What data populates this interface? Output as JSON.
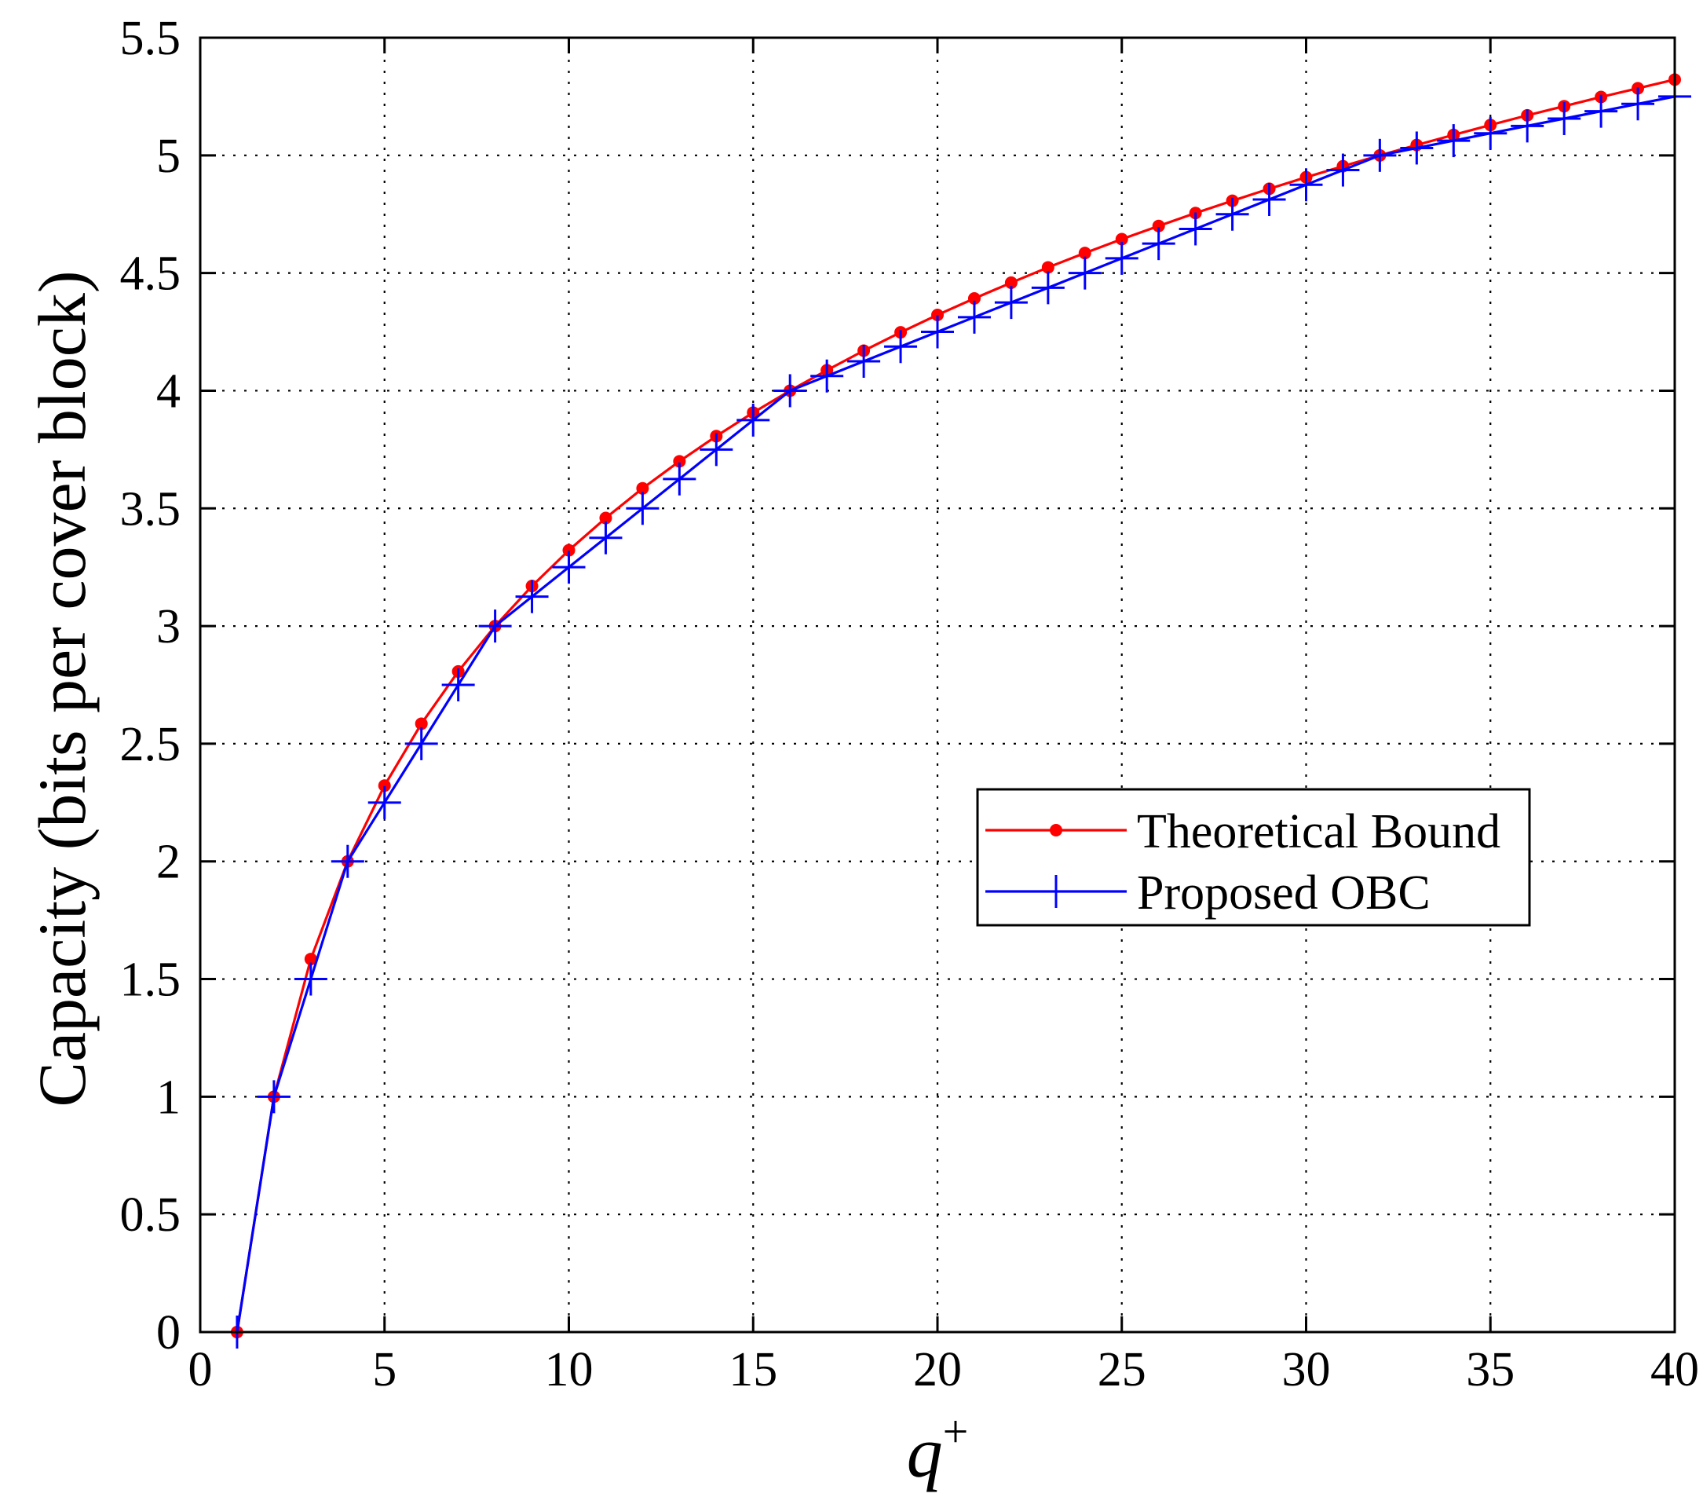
{
  "chart_data": {
    "type": "line",
    "xlabel_base": "q",
    "xlabel_sup": "+",
    "ylabel": "Capacity (bits per cover block)",
    "xlim": [
      0,
      40
    ],
    "ylim": [
      0,
      5.5
    ],
    "xticks": [
      0,
      5,
      10,
      15,
      20,
      25,
      30,
      35,
      40
    ],
    "yticks": [
      0,
      0.5,
      1,
      1.5,
      2,
      2.5,
      3,
      3.5,
      4,
      4.5,
      5,
      5.5
    ],
    "xtick_labels": [
      "0",
      "5",
      "10",
      "15",
      "20",
      "25",
      "30",
      "35",
      "40"
    ],
    "ytick_labels": [
      "0",
      "0.5",
      "1",
      "1.5",
      "2",
      "2.5",
      "3",
      "3.5",
      "4",
      "4.5",
      "5",
      "5.5"
    ],
    "grid": true,
    "legend_position": "right-middle",
    "x": [
      1,
      2,
      3,
      4,
      5,
      6,
      7,
      8,
      9,
      10,
      11,
      12,
      13,
      14,
      15,
      16,
      17,
      18,
      19,
      20,
      21,
      22,
      23,
      24,
      25,
      26,
      27,
      28,
      29,
      30,
      31,
      32,
      33,
      34,
      35,
      36,
      37,
      38,
      39,
      40
    ],
    "series": [
      {
        "name": "Theoretical Bound",
        "color": "#ff0000",
        "marker": "dot",
        "values": [
          0,
          1,
          1.585,
          2,
          2.322,
          2.585,
          2.807,
          3,
          3.17,
          3.322,
          3.459,
          3.585,
          3.7,
          3.807,
          3.907,
          4,
          4.087,
          4.17,
          4.248,
          4.322,
          4.392,
          4.459,
          4.524,
          4.585,
          4.644,
          4.7,
          4.755,
          4.807,
          4.858,
          4.907,
          4.954,
          5,
          5.044,
          5.087,
          5.129,
          5.17,
          5.209,
          5.248,
          5.285,
          5.322
        ]
      },
      {
        "name": "Proposed OBC",
        "color": "#0000ff",
        "marker": "plus",
        "values": [
          0,
          1,
          1.5,
          2,
          2.25,
          2.5,
          2.75,
          3,
          3.125,
          3.25,
          3.375,
          3.5,
          3.625,
          3.75,
          3.875,
          4,
          4.0625,
          4.125,
          4.1875,
          4.25,
          4.3125,
          4.375,
          4.4375,
          4.5,
          4.5625,
          4.625,
          4.6875,
          4.75,
          4.8125,
          4.875,
          4.9375,
          5,
          5.03125,
          5.0625,
          5.09375,
          5.125,
          5.15625,
          5.1875,
          5.21875,
          5.25
        ]
      }
    ]
  }
}
